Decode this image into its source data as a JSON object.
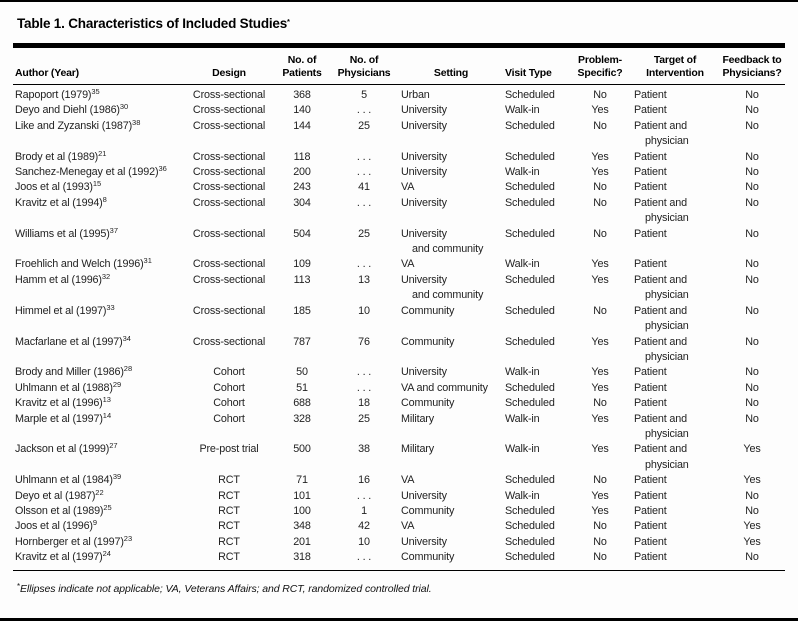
{
  "title": {
    "text": "Table 1. Characteristics of Included Studies",
    "marker": "*"
  },
  "colors": {
    "text": "#1c1c1c",
    "rule": "#000000",
    "background": "#fdfdfd"
  },
  "table": {
    "columns": [
      {
        "key": "author",
        "label": "Author (Year)"
      },
      {
        "key": "design",
        "label": "Design"
      },
      {
        "key": "patients",
        "label": "No. of\nPatients"
      },
      {
        "key": "physicians",
        "label": "No. of\nPhysicians"
      },
      {
        "key": "setting",
        "label": "Setting"
      },
      {
        "key": "visit_type",
        "label": "Visit Type"
      },
      {
        "key": "problem_specific",
        "label": "Problem-\nSpecific?"
      },
      {
        "key": "target",
        "label": "Target of\nIntervention"
      },
      {
        "key": "feedback",
        "label": "Feedback to\nPhysicians?"
      }
    ],
    "rows": [
      {
        "author": "Rapoport (1979)",
        "ref": "35",
        "design": "Cross-sectional",
        "patients": "368",
        "physicians": "5",
        "setting": "Urban",
        "visit_type": "Scheduled",
        "problem_specific": "No",
        "target": "Patient",
        "feedback": "No"
      },
      {
        "author": "Deyo and Diehl (1986)",
        "ref": "30",
        "design": "Cross-sectional",
        "patients": "140",
        "physicians": ". . .",
        "setting": "University",
        "visit_type": "Walk-in",
        "problem_specific": "Yes",
        "target": "Patient",
        "feedback": "No"
      },
      {
        "author": "Like and Zyzanski (1987)",
        "ref": "38",
        "design": "Cross-sectional",
        "patients": "144",
        "physicians": "25",
        "setting": "University",
        "visit_type": "Scheduled",
        "problem_specific": "No",
        "target": "Patient and\nphysician",
        "feedback": "No"
      },
      {
        "author": "Brody et al (1989)",
        "ref": "21",
        "design": "Cross-sectional",
        "patients": "118",
        "physicians": ". . .",
        "setting": "University",
        "visit_type": "Scheduled",
        "problem_specific": "Yes",
        "target": "Patient",
        "feedback": "No"
      },
      {
        "author": "Sanchez-Menegay et al (1992)",
        "ref": "36",
        "design": "Cross-sectional",
        "patients": "200",
        "physicians": ". . .",
        "setting": "University",
        "visit_type": "Walk-in",
        "problem_specific": "Yes",
        "target": "Patient",
        "feedback": "No"
      },
      {
        "author": "Joos et al (1993)",
        "ref": "15",
        "design": "Cross-sectional",
        "patients": "243",
        "physicians": "41",
        "setting": "VA",
        "visit_type": "Scheduled",
        "problem_specific": "No",
        "target": "Patient",
        "feedback": "No"
      },
      {
        "author": "Kravitz et al (1994)",
        "ref": "8",
        "design": "Cross-sectional",
        "patients": "304",
        "physicians": ". . .",
        "setting": "University",
        "visit_type": "Scheduled",
        "problem_specific": "No",
        "target": "Patient and\nphysician",
        "feedback": "No"
      },
      {
        "author": "Williams et al (1995)",
        "ref": "37",
        "design": "Cross-sectional",
        "patients": "504",
        "physicians": "25",
        "setting": "University\nand community",
        "visit_type": "Scheduled",
        "problem_specific": "No",
        "target": "Patient",
        "feedback": "No"
      },
      {
        "author": "Froehlich and Welch (1996)",
        "ref": "31",
        "design": "Cross-sectional",
        "patients": "109",
        "physicians": ". . .",
        "setting": "VA",
        "visit_type": "Walk-in",
        "problem_specific": "Yes",
        "target": "Patient",
        "feedback": "No"
      },
      {
        "author": "Hamm et al (1996)",
        "ref": "32",
        "design": "Cross-sectional",
        "patients": "113",
        "physicians": "13",
        "setting": "University\nand community",
        "visit_type": "Scheduled",
        "problem_specific": "Yes",
        "target": "Patient and\nphysician",
        "feedback": "No"
      },
      {
        "author": "Himmel et al (1997)",
        "ref": "33",
        "design": "Cross-sectional",
        "patients": "185",
        "physicians": "10",
        "setting": "Community",
        "visit_type": "Scheduled",
        "problem_specific": "No",
        "target": "Patient and\nphysician",
        "feedback": "No"
      },
      {
        "author": "Macfarlane et al (1997)",
        "ref": "34",
        "design": "Cross-sectional",
        "patients": "787",
        "physicians": "76",
        "setting": "Community",
        "visit_type": "Scheduled",
        "problem_specific": "Yes",
        "target": "Patient and\nphysician",
        "feedback": "No"
      },
      {
        "author": "Brody and Miller (1986)",
        "ref": "28",
        "design": "Cohort",
        "patients": "50",
        "physicians": ". . .",
        "setting": "University",
        "visit_type": "Walk-in",
        "problem_specific": "Yes",
        "target": "Patient",
        "feedback": "No"
      },
      {
        "author": "Uhlmann et al (1988)",
        "ref": "29",
        "design": "Cohort",
        "patients": "51",
        "physicians": ". . .",
        "setting": "VA and community",
        "visit_type": "Scheduled",
        "problem_specific": "Yes",
        "target": "Patient",
        "feedback": "No"
      },
      {
        "author": "Kravitz et al (1996)",
        "ref": "13",
        "design": "Cohort",
        "patients": "688",
        "physicians": "18",
        "setting": "Community",
        "visit_type": "Scheduled",
        "problem_specific": "No",
        "target": "Patient",
        "feedback": "No"
      },
      {
        "author": "Marple et al (1997)",
        "ref": "14",
        "design": "Cohort",
        "patients": "328",
        "physicians": "25",
        "setting": "Military",
        "visit_type": "Walk-in",
        "problem_specific": "Yes",
        "target": "Patient and\nphysician",
        "feedback": "No"
      },
      {
        "author": "Jackson et al (1999)",
        "ref": "27",
        "design": "Pre-post trial",
        "patients": "500",
        "physicians": "38",
        "setting": "Military",
        "visit_type": "Walk-in",
        "problem_specific": "Yes",
        "target": "Patient and\nphysician",
        "feedback": "Yes"
      },
      {
        "author": "Uhlmann et al (1984)",
        "ref": "39",
        "design": "RCT",
        "patients": "71",
        "physicians": "16",
        "setting": "VA",
        "visit_type": "Scheduled",
        "problem_specific": "No",
        "target": "Patient",
        "feedback": "Yes"
      },
      {
        "author": "Deyo et al (1987)",
        "ref": "22",
        "design": "RCT",
        "patients": "101",
        "physicians": ". . .",
        "setting": "University",
        "visit_type": "Walk-in",
        "problem_specific": "Yes",
        "target": "Patient",
        "feedback": "No"
      },
      {
        "author": "Olsson et al (1989)",
        "ref": "25",
        "design": "RCT",
        "patients": "100",
        "physicians": "1",
        "setting": "Community",
        "visit_type": "Scheduled",
        "problem_specific": "Yes",
        "target": "Patient",
        "feedback": "No"
      },
      {
        "author": "Joos et al (1996)",
        "ref": "9",
        "design": "RCT",
        "patients": "348",
        "physicians": "42",
        "setting": "VA",
        "visit_type": "Scheduled",
        "problem_specific": "No",
        "target": "Patient",
        "feedback": "Yes"
      },
      {
        "author": "Hornberger et al (1997)",
        "ref": "23",
        "design": "RCT",
        "patients": "201",
        "physicians": "10",
        "setting": "University",
        "visit_type": "Scheduled",
        "problem_specific": "No",
        "target": "Patient",
        "feedback": "Yes"
      },
      {
        "author": "Kravitz et al (1997)",
        "ref": "24",
        "design": "RCT",
        "patients": "318",
        "physicians": ". . .",
        "setting": "Community",
        "visit_type": "Scheduled",
        "problem_specific": "No",
        "target": "Patient",
        "feedback": "No"
      }
    ]
  },
  "footnote": {
    "marker": "*",
    "text": "Ellipses indicate not applicable; VA, Veterans Affairs; and RCT, randomized controlled trial."
  }
}
